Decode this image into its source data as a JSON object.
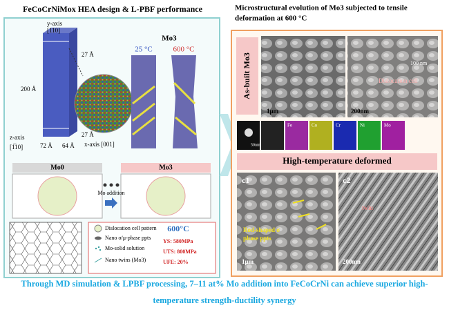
{
  "header": {
    "left_title": "FeCoCrNiMox HEA design & L-PBF performance",
    "right_title": [
      "Microstructural evolution of Mo3 subjected to tensile",
      "deformation at 600 °C"
    ]
  },
  "model": {
    "y_axis": "y-axis",
    "y_dir": "[110]",
    "top_dim": "27 Å",
    "height": "200 Å",
    "bottom_dim": "27 Å",
    "z_axis": "z-axis",
    "z_dir": "[1̅10]",
    "dim_z": "72 Å",
    "dim_x": "64 Å",
    "x_axis": "x-axis [001]",
    "sim_title": "Mo3",
    "temp_low": "25 °C",
    "temp_high": "600 °C"
  },
  "alloys": {
    "left": "Mo0",
    "right": "Mo3",
    "arrow": "Mo addition"
  },
  "legend": {
    "items": [
      "Dislocation cell pattern",
      "Nano σ/μ-phase ppts",
      "Mo-solid solution",
      "Nano twins (Mo3)"
    ],
    "temperature": "600°C",
    "props": [
      "YS: 580MPa",
      "UTS: 800MPa",
      "UFE: 20%"
    ]
  },
  "micro": {
    "as_built": "As-built Mo3",
    "scale1": "1μm",
    "scale2": "200nm",
    "scale3": "100 nm",
    "cell": "Dislocation cell",
    "eds": [
      "Fe",
      "Co",
      "Cr",
      "Ni",
      "Mo"
    ],
    "eds_scale": "50nm",
    "deformed": "High-temperature deformed",
    "c1": "c1",
    "c2": "c2",
    "rod": [
      "Rod-shaped σ",
      "phase ppts"
    ],
    "twin": "twin",
    "scale4": "1μm",
    "scale5": "200nm"
  },
  "caption": [
    "Through MD simulation & LPBF processing, 7–11 at% Mo addition into FeCoCrNi can achieve superior high-",
    "temperature strength-ductility synergy"
  ]
}
